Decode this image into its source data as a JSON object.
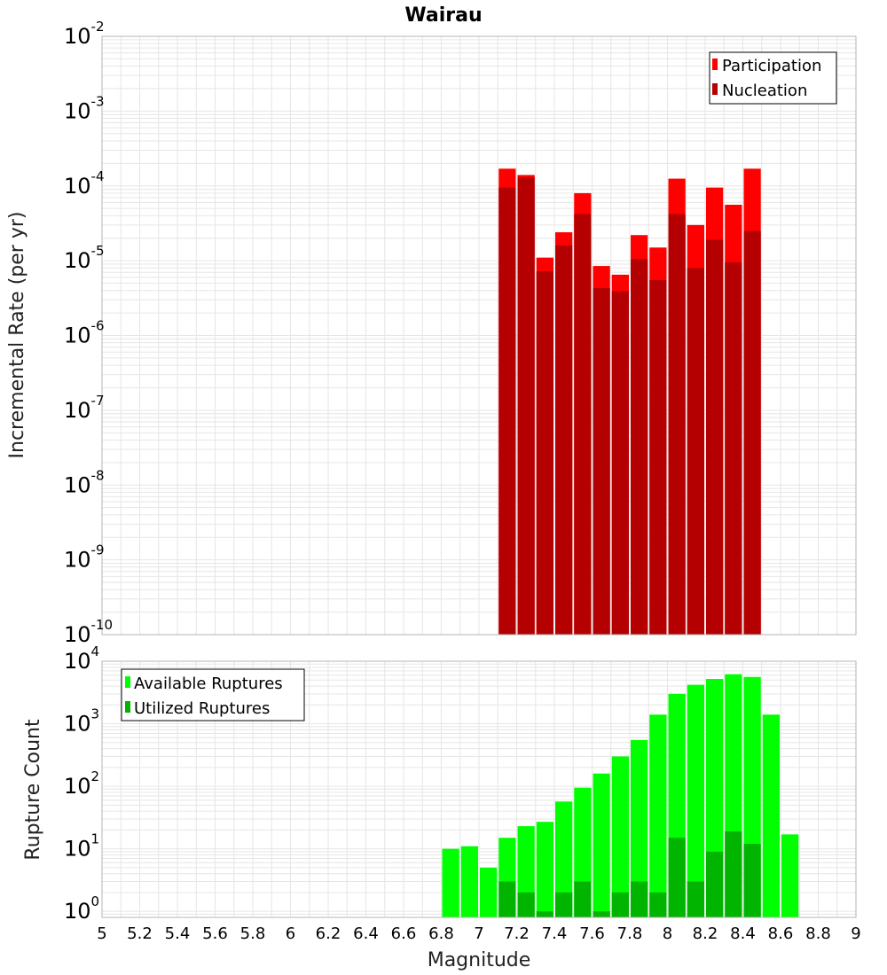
{
  "title": "Wairau",
  "xlabel": "Magnitude",
  "colors": {
    "participation": "#ff0000",
    "nucleation": "#b40000",
    "available": "#00ff00",
    "utilized": "#00b400",
    "grid": "#e6e6e6",
    "frame": "#b4b4b4"
  },
  "chart_data": [
    {
      "type": "bar",
      "ylabel": "Incremental Rate (per yr)",
      "yscale": "log",
      "ylim": [
        1e-10,
        0.01
      ],
      "xlim": [
        5,
        9
      ],
      "xticks": [
        "5",
        "5.2",
        "5.4",
        "5.6",
        "5.8",
        "6",
        "6.2",
        "6.4",
        "6.6",
        "6.8",
        "7",
        "7.2",
        "7.4",
        "7.6",
        "7.8",
        "8",
        "8.2",
        "8.4",
        "8.6",
        "8.8",
        "9"
      ],
      "yticks": [
        {
          "base": "10",
          "exp": "-2"
        },
        {
          "base": "10",
          "exp": "-3"
        },
        {
          "base": "10",
          "exp": "-4"
        },
        {
          "base": "10",
          "exp": "-5"
        },
        {
          "base": "10",
          "exp": "-6"
        },
        {
          "base": "10",
          "exp": "-7"
        },
        {
          "base": "10",
          "exp": "-8"
        },
        {
          "base": "10",
          "exp": "-9"
        },
        {
          "base": "10",
          "exp": "-10"
        }
      ],
      "legend_position": "top-right",
      "x": [
        7.15,
        7.25,
        7.35,
        7.45,
        7.55,
        7.65,
        7.75,
        7.85,
        7.95,
        8.05,
        8.15,
        8.25,
        8.35,
        8.45
      ],
      "series": [
        {
          "name": "Participation",
          "values": [
            0.00017,
            0.00014,
            1.1e-05,
            2.4e-05,
            8e-05,
            8.5e-06,
            6.5e-06,
            2.2e-05,
            1.5e-05,
            0.000125,
            3e-05,
            9.5e-05,
            5.6e-05,
            0.00017
          ]
        },
        {
          "name": "Nucleation",
          "values": [
            9.5e-05,
            0.00013,
            7.2e-06,
            1.6e-05,
            4.2e-05,
            4.3e-06,
            3.9e-06,
            1.05e-05,
            5.5e-06,
            4.2e-05,
            8e-06,
            1.9e-05,
            9.5e-06,
            2.5e-05
          ]
        }
      ]
    },
    {
      "type": "bar",
      "ylabel": "Rupture Count",
      "yscale": "log",
      "ylim": [
        0.8,
        10000
      ],
      "xlim": [
        5,
        9
      ],
      "yticks": [
        {
          "base": "10",
          "exp": "4",
          "value": 10000
        },
        {
          "base": "10",
          "exp": "3",
          "value": 1000
        },
        {
          "base": "10",
          "exp": "2",
          "value": 100
        },
        {
          "base": "10",
          "exp": "1",
          "value": 10
        },
        {
          "base": "10",
          "exp": "0",
          "value": 1
        }
      ],
      "legend_position": "top-left",
      "series": [
        {
          "name": "Available Ruptures",
          "x": [
            6.85,
            6.95,
            7.05,
            7.15,
            7.25,
            7.35,
            7.45,
            7.55,
            7.65,
            7.75,
            7.85,
            7.95,
            8.05,
            8.15,
            8.25,
            8.35,
            8.45,
            8.55,
            8.65
          ],
          "values": [
            10,
            11,
            5,
            15,
            23,
            27,
            57,
            95,
            160,
            300,
            550,
            1400,
            3000,
            4200,
            5200,
            6200,
            5600,
            1400,
            17
          ]
        },
        {
          "name": "Utilized Ruptures",
          "x": [
            7.15,
            7.25,
            7.35,
            7.45,
            7.55,
            7.65,
            7.75,
            7.85,
            7.95,
            8.05,
            8.15,
            8.25,
            8.35,
            8.45
          ],
          "values": [
            3,
            2,
            1,
            2,
            3,
            1,
            2,
            3,
            2,
            15,
            3,
            9,
            19,
            12
          ]
        }
      ]
    }
  ]
}
